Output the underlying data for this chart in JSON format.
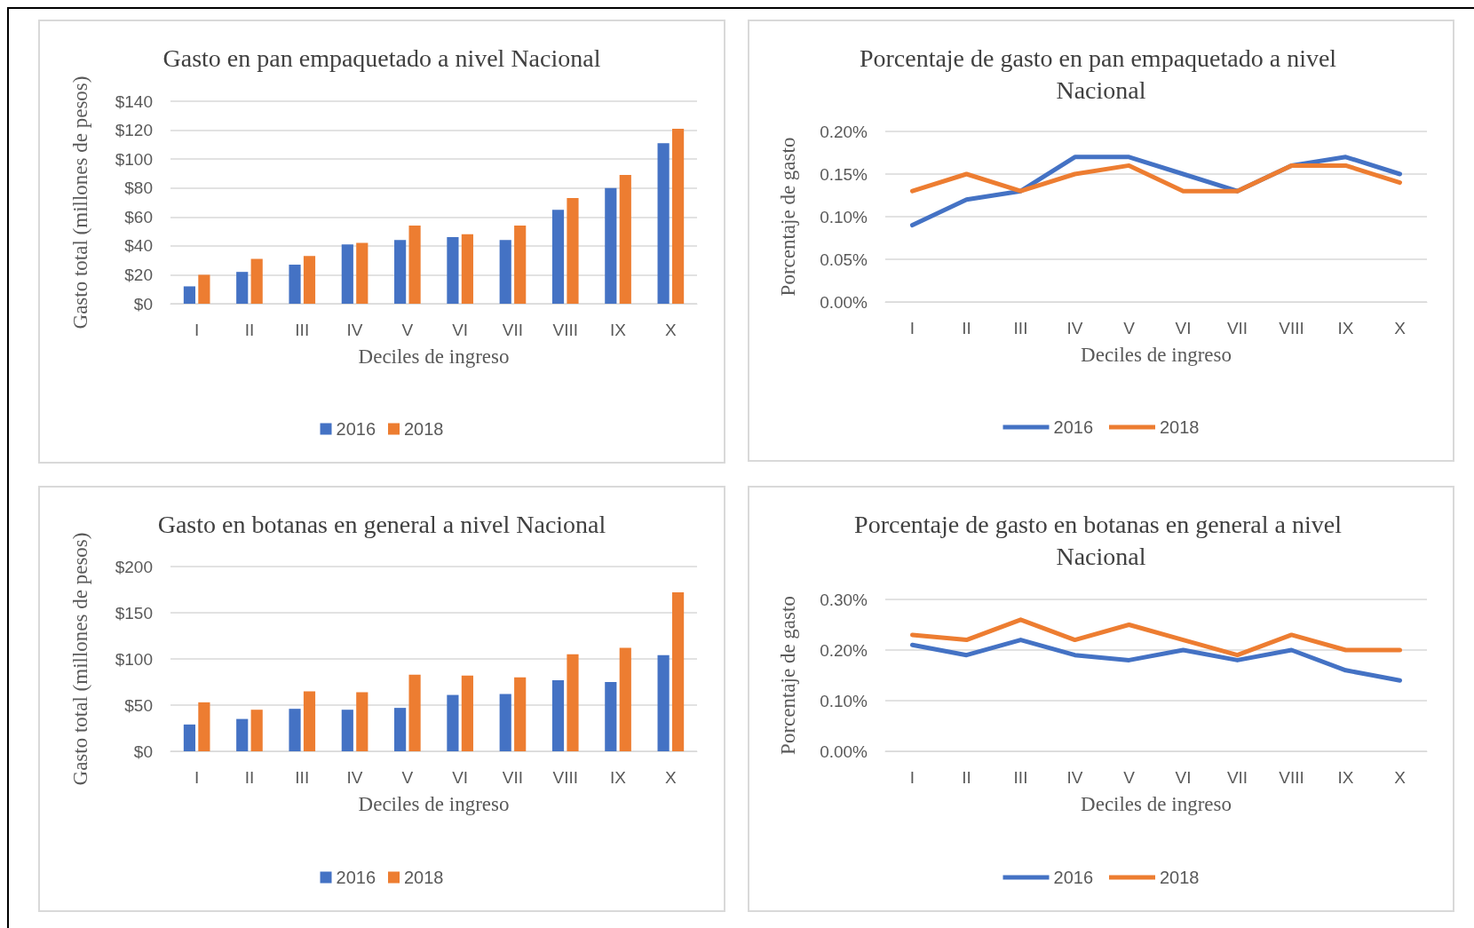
{
  "chart_data": [
    {
      "type": "bar",
      "title": "Gasto en pan empaquetado a nivel Nacional",
      "xlabel": "Deciles de ingreso",
      "ylabel": "Gasto total (millones de pesos)",
      "categories": [
        "I",
        "II",
        "III",
        "IV",
        "V",
        "VI",
        "VII",
        "VIII",
        "IX",
        "X"
      ],
      "series": [
        {
          "name": "2016",
          "color": "#4472c4",
          "values": [
            12,
            22,
            27,
            41,
            44,
            46,
            44,
            65,
            80,
            111
          ]
        },
        {
          "name": "2018",
          "color": "#ed7d31",
          "values": [
            20,
            31,
            33,
            42,
            54,
            48,
            54,
            73,
            89,
            121
          ]
        }
      ],
      "ylim": [
        0,
        140
      ],
      "yticks": [
        {
          "value": 0,
          "label": "$0"
        },
        {
          "value": 20,
          "label": "$20"
        },
        {
          "value": 40,
          "label": "$40"
        },
        {
          "value": 60,
          "label": "$60"
        },
        {
          "value": 80,
          "label": "$80"
        },
        {
          "value": 100,
          "label": "$100"
        },
        {
          "value": 120,
          "label": "$120"
        },
        {
          "value": 140,
          "label": "$140"
        }
      ],
      "grid": "y",
      "legend": "bottom"
    },
    {
      "type": "line",
      "title": "Porcentaje de gasto en pan empaquetado a nivel Nacional",
      "xlabel": "Deciles de ingreso",
      "ylabel": "Porcentaje de gasto",
      "categories": [
        "I",
        "II",
        "III",
        "IV",
        "V",
        "VI",
        "VII",
        "VIII",
        "IX",
        "X"
      ],
      "series": [
        {
          "name": "2016",
          "color": "#4472c4",
          "values": [
            0.09,
            0.12,
            0.13,
            0.17,
            0.17,
            0.15,
            0.13,
            0.16,
            0.17,
            0.15
          ]
        },
        {
          "name": "2018",
          "color": "#ed7d31",
          "values": [
            0.13,
            0.15,
            0.13,
            0.15,
            0.16,
            0.13,
            0.13,
            0.16,
            0.16,
            0.14
          ]
        }
      ],
      "ylim": [
        0,
        0.2
      ],
      "yticks": [
        {
          "value": 0,
          "label": "0.00%"
        },
        {
          "value": 0.05,
          "label": "0.05%"
        },
        {
          "value": 0.1,
          "label": "0.10%"
        },
        {
          "value": 0.15,
          "label": "0.15%"
        },
        {
          "value": 0.2,
          "label": "0.20%"
        }
      ],
      "grid": "y",
      "legend": "bottom",
      "marker": "none",
      "line_style": "solid"
    },
    {
      "type": "bar",
      "title": "Gasto en botanas en general a nivel Nacional",
      "xlabel": "Deciles de ingreso",
      "ylabel": "Gasto total (millones de pesos)",
      "categories": [
        "I",
        "II",
        "III",
        "IV",
        "V",
        "VI",
        "VII",
        "VIII",
        "IX",
        "X"
      ],
      "series": [
        {
          "name": "2016",
          "color": "#4472c4",
          "values": [
            29,
            35,
            46,
            45,
            47,
            61,
            62,
            77,
            75,
            104
          ]
        },
        {
          "name": "2018",
          "color": "#ed7d31",
          "values": [
            53,
            45,
            65,
            64,
            83,
            82,
            80,
            105,
            112,
            172
          ]
        }
      ],
      "ylim": [
        0,
        200
      ],
      "yticks": [
        {
          "value": 0,
          "label": "$0"
        },
        {
          "value": 50,
          "label": "$50"
        },
        {
          "value": 100,
          "label": "$100"
        },
        {
          "value": 150,
          "label": "$150"
        },
        {
          "value": 200,
          "label": "$200"
        }
      ],
      "grid": "y",
      "legend": "bottom"
    },
    {
      "type": "line",
      "title": "Porcentaje de gasto en botanas en general a nivel Nacional",
      "xlabel": "Deciles de ingreso",
      "ylabel": "Porcentaje de gasto",
      "categories": [
        "I",
        "II",
        "III",
        "IV",
        "V",
        "VI",
        "VII",
        "VIII",
        "IX",
        "X"
      ],
      "series": [
        {
          "name": "2016",
          "color": "#4472c4",
          "values": [
            0.21,
            0.19,
            0.22,
            0.19,
            0.18,
            0.2,
            0.18,
            0.2,
            0.16,
            0.14
          ]
        },
        {
          "name": "2018",
          "color": "#ed7d31",
          "values": [
            0.23,
            0.22,
            0.26,
            0.22,
            0.25,
            0.22,
            0.19,
            0.23,
            0.2,
            0.2
          ]
        }
      ],
      "ylim": [
        0,
        0.3
      ],
      "yticks": [
        {
          "value": 0,
          "label": "0.00%"
        },
        {
          "value": 0.1,
          "label": "0.10%"
        },
        {
          "value": 0.2,
          "label": "0.20%"
        },
        {
          "value": 0.3,
          "label": "0.30%"
        }
      ],
      "grid": "y",
      "legend": "bottom",
      "marker": "none",
      "line_style": "solid"
    }
  ]
}
